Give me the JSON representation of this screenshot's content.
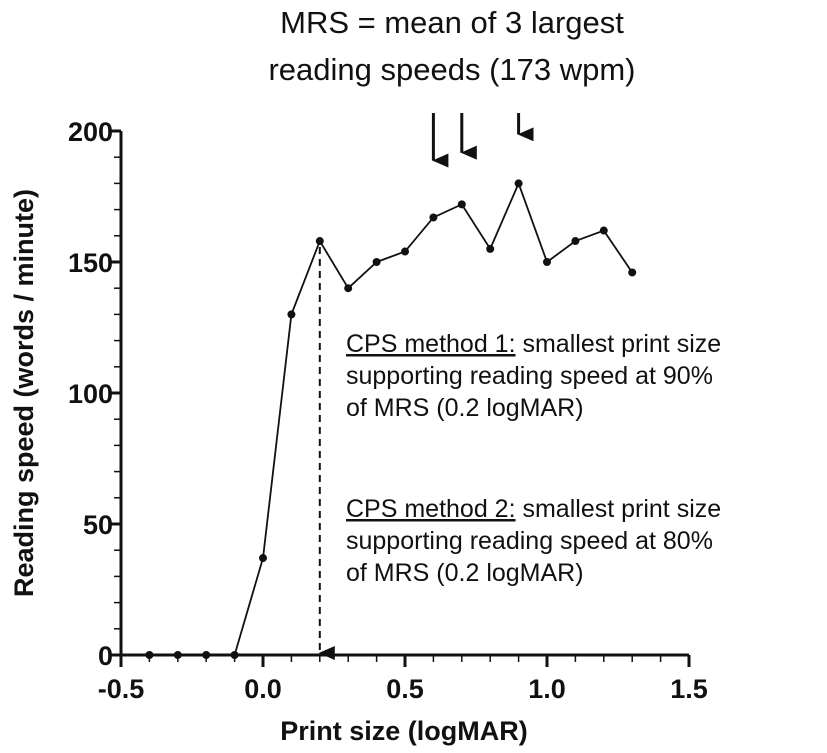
{
  "chart_data": {
    "type": "line",
    "title": [
      "MRS = mean of 3 largest",
      "reading speeds (173 wpm)"
    ],
    "xlabel": "Print size (logMAR)",
    "ylabel": "Reading speed (words / minute)",
    "xlim": [
      -0.5,
      1.5
    ],
    "ylim": [
      0,
      200
    ],
    "x_ticks": [
      -0.5,
      0.0,
      0.5,
      1.0,
      1.5
    ],
    "x_tick_labels": [
      "-0.5",
      "0.0",
      "0.5",
      "1.0",
      "1.5"
    ],
    "y_ticks": [
      0,
      50,
      100,
      150,
      200
    ],
    "y_tick_labels": [
      "0",
      "50",
      "100",
      "150",
      "200"
    ],
    "grid": false,
    "series": [
      {
        "x": [
          -0.4,
          -0.3,
          -0.2,
          -0.1,
          0.0,
          0.1,
          0.2,
          0.3,
          0.4,
          0.5,
          0.6,
          0.7,
          0.8,
          0.9,
          1.0,
          1.1,
          1.2,
          1.3
        ],
        "y": [
          0,
          0,
          0,
          0,
          37,
          130,
          158,
          140,
          150,
          154,
          167,
          172,
          155,
          180,
          150,
          158,
          162,
          146
        ]
      }
    ],
    "arrows": [
      {
        "x": 0.6,
        "y_from": 200,
        "y_to": 183
      },
      {
        "x": 0.7,
        "y_from": 200,
        "y_to": 186
      },
      {
        "x": 0.9,
        "y_from": 200,
        "y_to": 193
      }
    ],
    "cps_marker": {
      "x": 0.2,
      "y_from": 158,
      "y_to": 0,
      "style": "dashed"
    },
    "annotations": [
      {
        "heading": "CPS method 1:",
        "lines": [
          " smallest print size",
          "supporting reading speed at 90%",
          "of MRS (0.2 logMAR)"
        ]
      },
      {
        "heading": "CPS method 2:",
        "lines": [
          " smallest print size",
          "supporting reading speed at 80%",
          "of MRS (0.2 logMAR)"
        ]
      }
    ]
  }
}
